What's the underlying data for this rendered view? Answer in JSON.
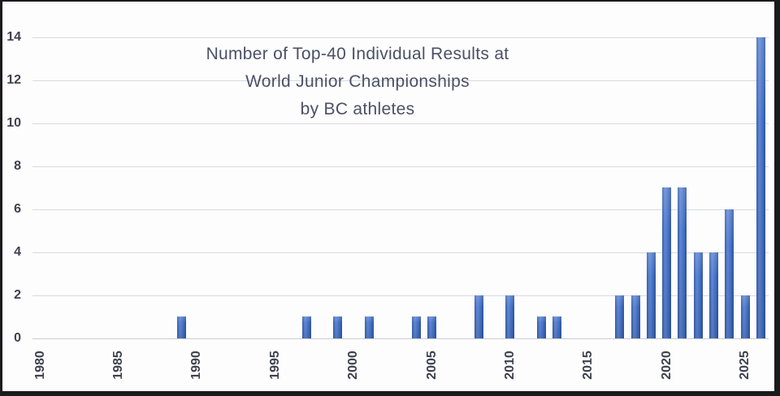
{
  "window": {
    "background": "#fdfdfe",
    "frame_color": "#1b1b1d"
  },
  "chart_data": {
    "type": "bar",
    "title": "Number of Top-40 Individual Results at World Junior Championships by BC athletes",
    "title_lines": [
      "Number of Top-40 Individual Results at",
      "World Junior Championships",
      "by BC athletes"
    ],
    "xlabel": "",
    "ylabel": "",
    "x_axis": {
      "first_year": 1980,
      "last_year": 2026,
      "tick_years": [
        1980,
        1985,
        1990,
        1995,
        2000,
        2005,
        2010,
        2015,
        2020,
        2025
      ],
      "tick_label_rotation_deg": -90
    },
    "y_axis": {
      "ticks": [
        0,
        2,
        4,
        6,
        8,
        10,
        12,
        14
      ],
      "ylim": [
        0,
        14
      ]
    },
    "grid": true,
    "legend": "none",
    "default_value": 0,
    "bars": [
      {
        "year": 1989,
        "value": 1
      },
      {
        "year": 1997,
        "value": 1
      },
      {
        "year": 1999,
        "value": 1
      },
      {
        "year": 2001,
        "value": 1
      },
      {
        "year": 2004,
        "value": 1
      },
      {
        "year": 2005,
        "value": 1
      },
      {
        "year": 2008,
        "value": 2
      },
      {
        "year": 2010,
        "value": 2
      },
      {
        "year": 2012,
        "value": 1
      },
      {
        "year": 2013,
        "value": 1
      },
      {
        "year": 2017,
        "value": 2
      },
      {
        "year": 2018,
        "value": 2
      },
      {
        "year": 2019,
        "value": 4
      },
      {
        "year": 2020,
        "value": 7
      },
      {
        "year": 2021,
        "value": 7
      },
      {
        "year": 2022,
        "value": 4
      },
      {
        "year": 2023,
        "value": 4
      },
      {
        "year": 2024,
        "value": 6
      },
      {
        "year": 2025,
        "value": 2
      },
      {
        "year": 2026,
        "value": 14
      }
    ],
    "colors": {
      "bar_main": "#4472c4",
      "bar_light": "#5f87d8",
      "bar_dark": "#3a5fa6",
      "bar_edge": "#30539b",
      "title_text": "#4a5165",
      "tick_text": "#3e424e",
      "gridline": "#d9dade",
      "axis_line": "#c9ccd4"
    }
  }
}
